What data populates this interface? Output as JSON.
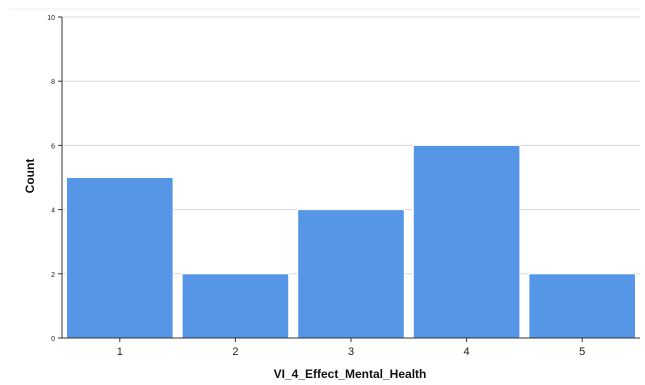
{
  "chart_data": {
    "type": "bar",
    "categories": [
      "1",
      "2",
      "3",
      "4",
      "5"
    ],
    "values": [
      5,
      2,
      4,
      6,
      2
    ],
    "xlabel": "VI_4_Effect_Mental_Health",
    "ylabel": "Count",
    "ylim": [
      0,
      10
    ],
    "yticks": [
      "0",
      "2",
      "4",
      "6",
      "8",
      "10"
    ],
    "grid": true,
    "bar_color": "#5596e6",
    "bar_edge_color": "#ffffff",
    "grid_color": "#d9d9d9",
    "axis_color": "#333333"
  }
}
